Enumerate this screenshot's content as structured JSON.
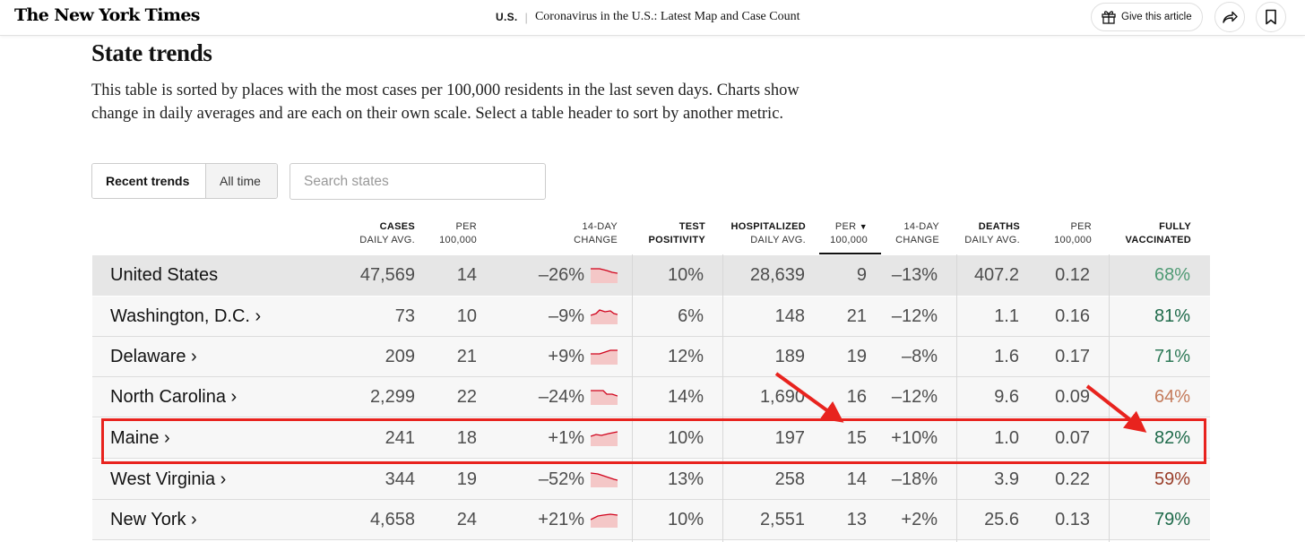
{
  "header": {
    "logo": "The New York Times",
    "section": "U.S.",
    "article_title": "Coronavirus in the U.S.: Latest Map and Case Count",
    "gift_label": "Give this article"
  },
  "heading": "State trends",
  "intro": "This table is sorted by places with the most cases per 100,000 residents in the last seven days. Charts show change in daily averages and are each on their own scale. Select a table header to sort by another metric.",
  "tabs": {
    "recent": "Recent trends",
    "all": "All time"
  },
  "search": {
    "placeholder": "Search states",
    "value": ""
  },
  "columns": [
    {
      "l1": "CASES",
      "l2": "DAILY AVG."
    },
    {
      "l1": "PER",
      "l2": "100,000"
    },
    {
      "l1": "14-DAY",
      "l2": "CHANGE"
    },
    {
      "l1": "TEST",
      "l2": "POSITIVITY"
    },
    {
      "l1": "HOSPITALIZED",
      "l2": "DAILY AVG."
    },
    {
      "l1": "PER",
      "l2": "100,000"
    },
    {
      "l1": "14-DAY",
      "l2": "CHANGE"
    },
    {
      "l1": "DEATHS",
      "l2": "DAILY AVG."
    },
    {
      "l1": "PER",
      "l2": "100,000"
    },
    {
      "l1": "FULLY",
      "l2": "VACCINATED"
    }
  ],
  "sort_indicator": "▼",
  "rows": [
    {
      "name": "United States",
      "cases": "47,569",
      "cases_per": "14",
      "cases_change": "–26%",
      "positivity": "10%",
      "hosp": "28,639",
      "hosp_per": "9",
      "hosp_change": "–13%",
      "deaths": "407.2",
      "deaths_per": "0.12",
      "vaccinated": "68%",
      "vax_color": "#4f9a74"
    },
    {
      "name": "Washington, D.C. ›",
      "cases": "73",
      "cases_per": "10",
      "cases_change": "–9%",
      "positivity": "6%",
      "hosp": "148",
      "hosp_per": "21",
      "hosp_change": "–12%",
      "deaths": "1.1",
      "deaths_per": "0.16",
      "vaccinated": "81%",
      "vax_color": "#1e6a4a"
    },
    {
      "name": "Delaware ›",
      "cases": "209",
      "cases_per": "21",
      "cases_change": "+9%",
      "positivity": "12%",
      "hosp": "189",
      "hosp_per": "19",
      "hosp_change": "–8%",
      "deaths": "1.6",
      "deaths_per": "0.17",
      "vaccinated": "71%",
      "vax_color": "#2f7a58"
    },
    {
      "name": "North Carolina ›",
      "cases": "2,299",
      "cases_per": "22",
      "cases_change": "–24%",
      "positivity": "14%",
      "hosp": "1,690",
      "hosp_per": "16",
      "hosp_change": "–12%",
      "deaths": "9.6",
      "deaths_per": "0.09",
      "vaccinated": "64%",
      "vax_color": "#c47a5a"
    },
    {
      "name": "Maine ›",
      "cases": "241",
      "cases_per": "18",
      "cases_change": "+1%",
      "positivity": "10%",
      "hosp": "197",
      "hosp_per": "15",
      "hosp_change": "+10%",
      "deaths": "1.0",
      "deaths_per": "0.07",
      "vaccinated": "82%",
      "vax_color": "#1e6a4a"
    },
    {
      "name": "West Virginia ›",
      "cases": "344",
      "cases_per": "19",
      "cases_change": "–52%",
      "positivity": "13%",
      "hosp": "258",
      "hosp_per": "14",
      "hosp_change": "–18%",
      "deaths": "3.9",
      "deaths_per": "0.22",
      "vaccinated": "59%",
      "vax_color": "#9a3e2a"
    },
    {
      "name": "New York ›",
      "cases": "4,658",
      "cases_per": "24",
      "cases_change": "+21%",
      "positivity": "10%",
      "hosp": "2,551",
      "hosp_per": "13",
      "hosp_change": "+2%",
      "deaths": "25.6",
      "deaths_per": "0.13",
      "vaccinated": "79%",
      "vax_color": "#1e6a4a"
    }
  ],
  "colors": {
    "spark_fill": "#f4c7c7",
    "spark_line": "#d0021b",
    "annotation": "#e8231e"
  }
}
